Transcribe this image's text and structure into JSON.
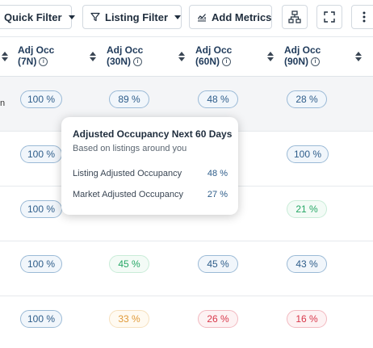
{
  "toolbar": {
    "quick_filter": "Quick Filter",
    "listing_filter": "Listing Filter",
    "add_metrics": "Add Metrics"
  },
  "columns": [
    {
      "line1": "Adj Occ",
      "line2": "(7N)"
    },
    {
      "line1": "Adj Occ",
      "line2": "(30N)"
    },
    {
      "line1": "Adj Occ",
      "line2": "(60N)"
    },
    {
      "line1": "Adj Occ",
      "line2": "(90N)"
    }
  ],
  "rows": [
    {
      "edge": "n",
      "cells": [
        "100 %",
        "89 %",
        "48 %",
        "28 %"
      ],
      "colors": [
        "blue",
        "blue",
        "blue",
        "blue"
      ]
    },
    {
      "edge": "",
      "cells": [
        "100 %",
        "",
        "",
        "100 %"
      ],
      "colors": [
        "blue",
        "blue",
        "blue",
        "blue"
      ]
    },
    {
      "edge": "",
      "cells": [
        "100 %",
        "",
        "",
        "21 %"
      ],
      "colors": [
        "blue",
        "blue",
        "blue",
        "green"
      ]
    },
    {
      "edge": "",
      "cells": [
        "100 %",
        "45 %",
        "45 %",
        "43 %"
      ],
      "colors": [
        "blue",
        "green",
        "blue",
        "blue"
      ]
    },
    {
      "edge": "",
      "cells": [
        "100 %",
        "33 %",
        "26 %",
        "16 %"
      ],
      "colors": [
        "blue",
        "orange",
        "red",
        "red"
      ]
    }
  ],
  "tooltip": {
    "title": "Adjusted Occupancy Next 60 Days",
    "subtitle": "Based on listings around you",
    "listing_label": "Listing Adjusted Occupancy",
    "listing_value": "48 %",
    "market_label": "Market Adjusted Occupancy",
    "market_value": "27 %"
  },
  "icons": {
    "filter": "filter-funnel-icon",
    "metrics": "chart-metrics-icon",
    "hierarchy": "hierarchy-icon",
    "expand": "fullscreen-icon",
    "more": "more-vertical-icon",
    "info": "info-icon",
    "sort": "sort-icon"
  }
}
